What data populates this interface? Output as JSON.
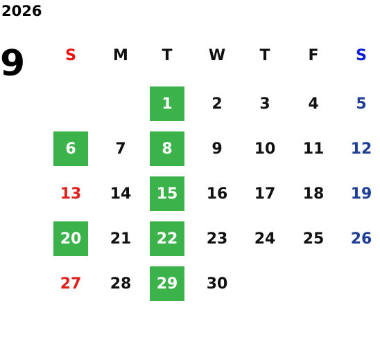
{
  "header": {
    "year": "2026",
    "month": "9"
  },
  "weekdays": [
    "S",
    "M",
    "T",
    "W",
    "T",
    "F",
    "S"
  ],
  "weeks": [
    [
      null,
      null,
      {
        "day": "1",
        "marked": true
      },
      {
        "day": "2",
        "marked": false
      },
      {
        "day": "3",
        "marked": false
      },
      {
        "day": "4",
        "marked": false
      },
      {
        "day": "5",
        "marked": false
      }
    ],
    [
      {
        "day": "6",
        "marked": true
      },
      {
        "day": "7",
        "marked": false
      },
      {
        "day": "8",
        "marked": true
      },
      {
        "day": "9",
        "marked": false
      },
      {
        "day": "10",
        "marked": false
      },
      {
        "day": "11",
        "marked": false
      },
      {
        "day": "12",
        "marked": false
      }
    ],
    [
      {
        "day": "13",
        "marked": false
      },
      {
        "day": "14",
        "marked": false
      },
      {
        "day": "15",
        "marked": true
      },
      {
        "day": "16",
        "marked": false
      },
      {
        "day": "17",
        "marked": false
      },
      {
        "day": "18",
        "marked": false
      },
      {
        "day": "19",
        "marked": false
      }
    ],
    [
      {
        "day": "20",
        "marked": true
      },
      {
        "day": "21",
        "marked": false
      },
      {
        "day": "22",
        "marked": true
      },
      {
        "day": "23",
        "marked": false
      },
      {
        "day": "24",
        "marked": false
      },
      {
        "day": "25",
        "marked": false
      },
      {
        "day": "26",
        "marked": false
      }
    ],
    [
      {
        "day": "27",
        "marked": false
      },
      {
        "day": "28",
        "marked": false
      },
      {
        "day": "29",
        "marked": true
      },
      {
        "day": "30",
        "marked": false
      },
      null,
      null,
      null
    ]
  ]
}
